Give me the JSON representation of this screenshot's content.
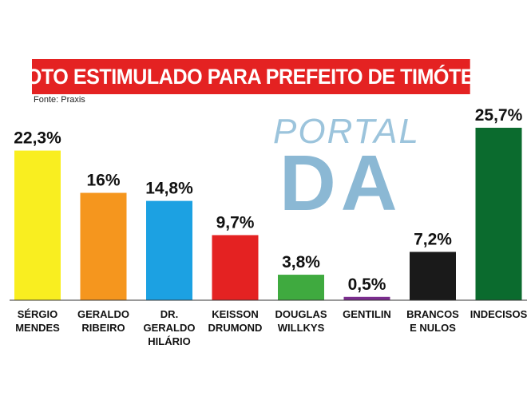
{
  "title": "VOTO ESTIMULADO PARA PREFEITO DE TIMÓTEO",
  "source": "Fonte: Praxis",
  "watermark": {
    "line1": "PORTAL",
    "line2": "DA"
  },
  "chart_data": {
    "type": "bar",
    "categories": [
      [
        "SÉRGIO",
        "MENDES"
      ],
      [
        "GERALDO",
        "RIBEIRO"
      ],
      [
        "DR.",
        "GERALDO",
        "HILÁRIO"
      ],
      [
        "KEISSON",
        "DRUMOND"
      ],
      [
        "DOUGLAS",
        "WILLKYS"
      ],
      [
        "GENTILIN"
      ],
      [
        "BRANCOS",
        "E NULOS"
      ],
      [
        "INDECISOS"
      ]
    ],
    "values": [
      22.3,
      16,
      14.8,
      9.7,
      3.8,
      0.5,
      7.2,
      25.7
    ],
    "value_labels": [
      "22,3%",
      "16%",
      "14,8%",
      "9,7%",
      "3,8%",
      "0,5%",
      "7,2%",
      "25,7%"
    ],
    "colors": [
      "#f9ee20",
      "#f5961e",
      "#1ca1e2",
      "#e42222",
      "#3faa3f",
      "#7b2d8e",
      "#1a1a1a",
      "#0b6b2e"
    ],
    "ylim": [
      0,
      25.7
    ]
  }
}
